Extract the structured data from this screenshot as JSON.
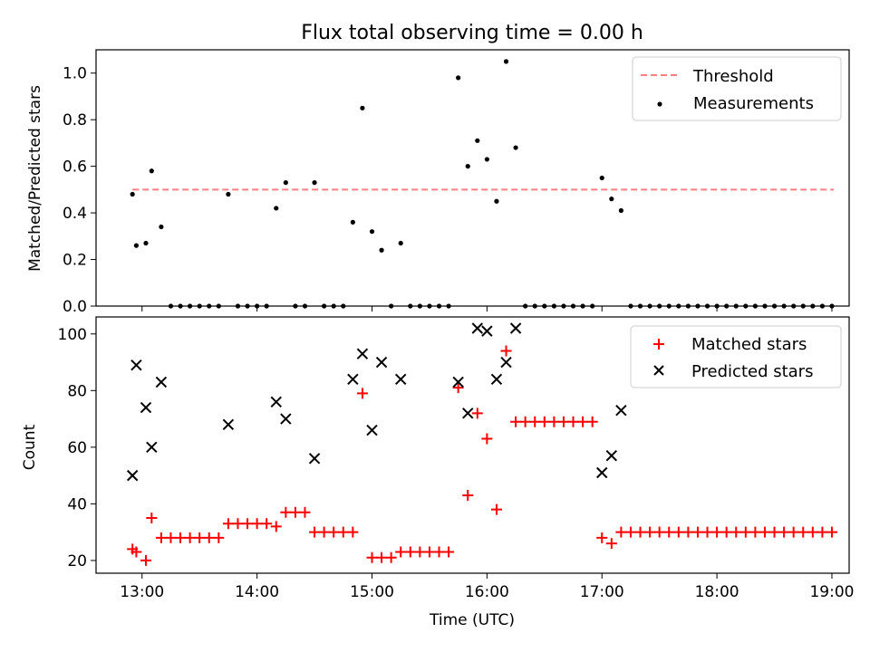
{
  "chart_data": [
    {
      "type": "scatter",
      "title": "Flux total observing time = 0.00 h",
      "xlabel": "",
      "ylabel": "Matched/Predicted stars",
      "xlim": [
        "12:36",
        "19:09"
      ],
      "ylim": [
        0,
        1.1
      ],
      "x_ticks": [
        "13:00",
        "14:00",
        "15:00",
        "16:00",
        "17:00",
        "18:00",
        "19:00"
      ],
      "y_ticks": [
        "0.0",
        "0.2",
        "0.4",
        "0.6",
        "0.8",
        "1.0"
      ],
      "grid": false,
      "legend": "top-right",
      "threshold": {
        "name": "Threshold",
        "value": 0.5,
        "x_start": "12:55",
        "x_end": "19:01",
        "color": "#ff7f7f"
      },
      "series": [
        {
          "name": "Measurements",
          "color": "#000000",
          "points": [
            [
              "12:55",
              0.48
            ],
            [
              "12:57",
              0.26
            ],
            [
              "13:02",
              0.27
            ],
            [
              "13:05",
              0.58
            ],
            [
              "13:10",
              0.34
            ],
            [
              "13:15",
              0.0
            ],
            [
              "13:20",
              0.0
            ],
            [
              "13:25",
              0.0
            ],
            [
              "13:30",
              0.0
            ],
            [
              "13:35",
              0.0
            ],
            [
              "13:40",
              0.0
            ],
            [
              "13:45",
              0.48
            ],
            [
              "13:50",
              0.0
            ],
            [
              "13:55",
              0.0
            ],
            [
              "14:00",
              0.0
            ],
            [
              "14:05",
              0.0
            ],
            [
              "14:10",
              0.42
            ],
            [
              "14:15",
              0.53
            ],
            [
              "14:20",
              0.0
            ],
            [
              "14:25",
              0.0
            ],
            [
              "14:30",
              0.53
            ],
            [
              "14:35",
              0.0
            ],
            [
              "14:40",
              0.0
            ],
            [
              "14:45",
              0.0
            ],
            [
              "14:50",
              0.36
            ],
            [
              "14:55",
              0.85
            ],
            [
              "15:00",
              0.32
            ],
            [
              "15:05",
              0.24
            ],
            [
              "15:10",
              0.0
            ],
            [
              "15:15",
              0.27
            ],
            [
              "15:20",
              0.0
            ],
            [
              "15:25",
              0.0
            ],
            [
              "15:30",
              0.0
            ],
            [
              "15:35",
              0.0
            ],
            [
              "15:40",
              0.0
            ],
            [
              "15:45",
              0.98
            ],
            [
              "15:50",
              0.6
            ],
            [
              "15:55",
              0.71
            ],
            [
              "16:00",
              0.63
            ],
            [
              "16:05",
              0.45
            ],
            [
              "16:10",
              1.05
            ],
            [
              "16:15",
              0.68
            ],
            [
              "16:20",
              0.0
            ],
            [
              "16:25",
              0.0
            ],
            [
              "16:30",
              0.0
            ],
            [
              "16:35",
              0.0
            ],
            [
              "16:40",
              0.0
            ],
            [
              "16:45",
              0.0
            ],
            [
              "16:50",
              0.0
            ],
            [
              "16:55",
              0.0
            ],
            [
              "17:00",
              0.55
            ],
            [
              "17:05",
              0.46
            ],
            [
              "17:10",
              0.41
            ],
            [
              "17:15",
              0.0
            ],
            [
              "17:20",
              0.0
            ],
            [
              "17:25",
              0.0
            ],
            [
              "17:30",
              0.0
            ],
            [
              "17:35",
              0.0
            ],
            [
              "17:40",
              0.0
            ],
            [
              "17:45",
              0.0
            ],
            [
              "17:50",
              0.0
            ],
            [
              "17:55",
              0.0
            ],
            [
              "18:00",
              0.0
            ],
            [
              "18:05",
              0.0
            ],
            [
              "18:10",
              0.0
            ],
            [
              "18:15",
              0.0
            ],
            [
              "18:20",
              0.0
            ],
            [
              "18:25",
              0.0
            ],
            [
              "18:30",
              0.0
            ],
            [
              "18:35",
              0.0
            ],
            [
              "18:40",
              0.0
            ],
            [
              "18:45",
              0.0
            ],
            [
              "18:50",
              0.0
            ],
            [
              "18:55",
              0.0
            ],
            [
              "19:00",
              0.0
            ]
          ]
        }
      ]
    },
    {
      "type": "scatter",
      "title": "",
      "xlabel": "Time (UTC)",
      "ylabel": "Count",
      "xlim": [
        "12:36",
        "19:09"
      ],
      "ylim": [
        15.5,
        106
      ],
      "x_ticks": [
        "13:00",
        "14:00",
        "15:00",
        "16:00",
        "17:00",
        "18:00",
        "19:00"
      ],
      "y_ticks": [
        "20",
        "40",
        "60",
        "80",
        "100"
      ],
      "grid": false,
      "legend": "top-right",
      "series": [
        {
          "name": "Matched stars",
          "marker": "plus",
          "color": "#ff0000",
          "points": [
            [
              "12:55",
              24
            ],
            [
              "12:57",
              23
            ],
            [
              "13:02",
              20
            ],
            [
              "13:05",
              35
            ],
            [
              "13:10",
              28
            ],
            [
              "13:15",
              28
            ],
            [
              "13:20",
              28
            ],
            [
              "13:25",
              28
            ],
            [
              "13:30",
              28
            ],
            [
              "13:35",
              28
            ],
            [
              "13:40",
              28
            ],
            [
              "13:45",
              33
            ],
            [
              "13:50",
              33
            ],
            [
              "13:55",
              33
            ],
            [
              "14:00",
              33
            ],
            [
              "14:05",
              33
            ],
            [
              "14:10",
              32
            ],
            [
              "14:15",
              37
            ],
            [
              "14:20",
              37
            ],
            [
              "14:25",
              37
            ],
            [
              "14:30",
              30
            ],
            [
              "14:35",
              30
            ],
            [
              "14:40",
              30
            ],
            [
              "14:45",
              30
            ],
            [
              "14:50",
              30
            ],
            [
              "14:55",
              79
            ],
            [
              "15:00",
              21
            ],
            [
              "15:05",
              21
            ],
            [
              "15:10",
              21
            ],
            [
              "15:15",
              23
            ],
            [
              "15:20",
              23
            ],
            [
              "15:25",
              23
            ],
            [
              "15:30",
              23
            ],
            [
              "15:35",
              23
            ],
            [
              "15:40",
              23
            ],
            [
              "15:45",
              81
            ],
            [
              "15:50",
              43
            ],
            [
              "15:55",
              72
            ],
            [
              "16:00",
              63
            ],
            [
              "16:05",
              38
            ],
            [
              "16:10",
              94
            ],
            [
              "16:15",
              69
            ],
            [
              "16:20",
              69
            ],
            [
              "16:25",
              69
            ],
            [
              "16:30",
              69
            ],
            [
              "16:35",
              69
            ],
            [
              "16:40",
              69
            ],
            [
              "16:45",
              69
            ],
            [
              "16:50",
              69
            ],
            [
              "16:55",
              69
            ],
            [
              "17:00",
              28
            ],
            [
              "17:05",
              26
            ],
            [
              "17:10",
              30
            ],
            [
              "17:15",
              30
            ],
            [
              "17:20",
              30
            ],
            [
              "17:25",
              30
            ],
            [
              "17:30",
              30
            ],
            [
              "17:35",
              30
            ],
            [
              "17:40",
              30
            ],
            [
              "17:45",
              30
            ],
            [
              "17:50",
              30
            ],
            [
              "17:55",
              30
            ],
            [
              "18:00",
              30
            ],
            [
              "18:05",
              30
            ],
            [
              "18:10",
              30
            ],
            [
              "18:15",
              30
            ],
            [
              "18:20",
              30
            ],
            [
              "18:25",
              30
            ],
            [
              "18:30",
              30
            ],
            [
              "18:35",
              30
            ],
            [
              "18:40",
              30
            ],
            [
              "18:45",
              30
            ],
            [
              "18:50",
              30
            ],
            [
              "18:55",
              30
            ],
            [
              "19:00",
              30
            ]
          ]
        },
        {
          "name": "Predicted stars",
          "marker": "x",
          "color": "#000000",
          "points": [
            [
              "12:55",
              50
            ],
            [
              "12:57",
              89
            ],
            [
              "13:02",
              74
            ],
            [
              "13:05",
              60
            ],
            [
              "13:10",
              83
            ],
            [
              "13:45",
              68
            ],
            [
              "14:10",
              76
            ],
            [
              "14:15",
              70
            ],
            [
              "14:30",
              56
            ],
            [
              "14:50",
              84
            ],
            [
              "14:55",
              93
            ],
            [
              "15:00",
              66
            ],
            [
              "15:05",
              90
            ],
            [
              "15:15",
              84
            ],
            [
              "15:45",
              83
            ],
            [
              "15:50",
              72
            ],
            [
              "15:55",
              102
            ],
            [
              "16:00",
              101
            ],
            [
              "16:05",
              84
            ],
            [
              "16:10",
              90
            ],
            [
              "16:15",
              102
            ],
            [
              "17:00",
              51
            ],
            [
              "17:05",
              57
            ],
            [
              "17:10",
              73
            ]
          ]
        }
      ]
    }
  ]
}
